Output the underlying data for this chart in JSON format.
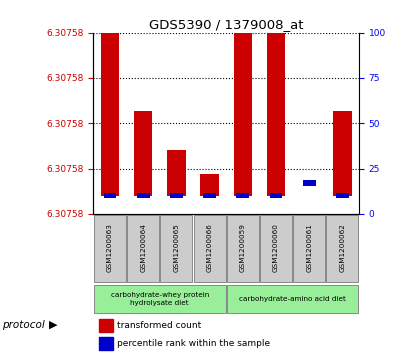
{
  "title": "GDS5390 / 1379008_at",
  "samples": [
    "GSM1200063",
    "GSM1200064",
    "GSM1200065",
    "GSM1200066",
    "GSM1200059",
    "GSM1200060",
    "GSM1200061",
    "GSM1200062"
  ],
  "red_bar_top_pct": [
    100,
    57,
    35,
    22,
    100,
    100,
    0,
    57
  ],
  "red_bar_bottom_pct": [
    10,
    10,
    10,
    10,
    10,
    10,
    0,
    10
  ],
  "blue_pct": [
    10,
    10,
    10,
    10,
    10,
    10,
    17,
    10
  ],
  "has_red_bar": [
    true,
    true,
    true,
    true,
    true,
    true,
    false,
    true
  ],
  "right_y_ticks": [
    0,
    25,
    50,
    75,
    100
  ],
  "y_tick_labels_left": [
    "6.30758",
    "6.30758",
    "6.30758",
    "6.30758",
    "6.30758"
  ],
  "group1_label": "carbohydrate-whey protein\nhydrolysate diet",
  "group2_label": "carbohydrate-amino acid diet",
  "protocol_label": "protocol",
  "legend_red": "transformed count",
  "legend_blue": "percentile rank within the sample",
  "bar_color_red": "#cc0000",
  "bar_color_blue": "#0000cc",
  "group_color": "#99ee99",
  "sample_box_color": "#cccccc",
  "bg_color": "#ffffff"
}
